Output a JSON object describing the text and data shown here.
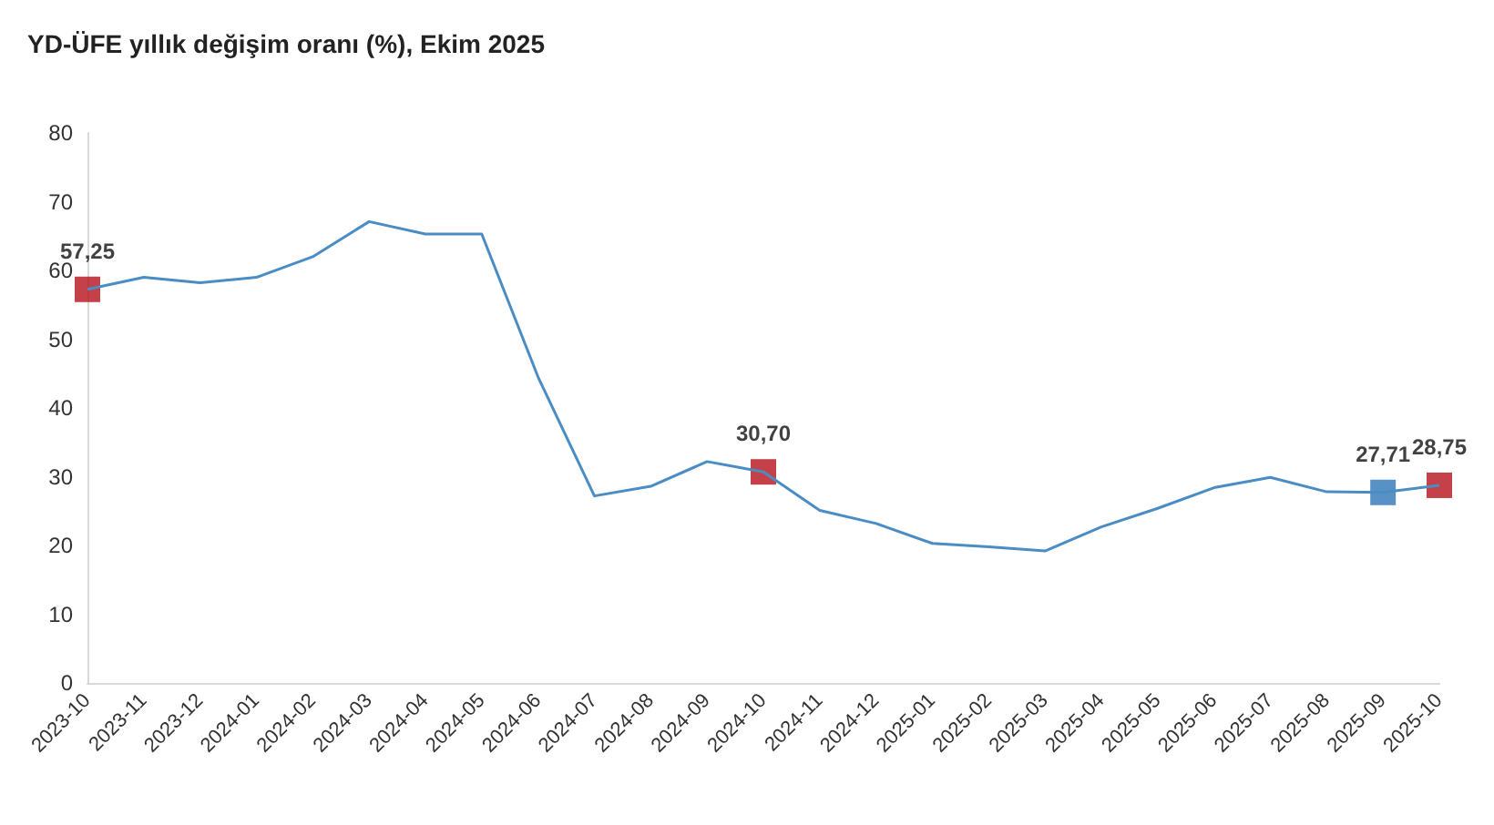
{
  "chart_data": {
    "type": "line",
    "title": "YD-ÜFE yıllık değişim oranı (%), Ekim 2025",
    "categories": [
      "2023-10",
      "2023-11",
      "2023-12",
      "2024-01",
      "2024-02",
      "2024-03",
      "2024-04",
      "2024-05",
      "2024-06",
      "2024-07",
      "2024-08",
      "2024-09",
      "2024-10",
      "2024-11",
      "2024-12",
      "2025-01",
      "2025-02",
      "2025-03",
      "2025-04",
      "2025-05",
      "2025-06",
      "2025-07",
      "2025-08",
      "2025-09",
      "2025-10"
    ],
    "series": [
      {
        "color": "#4a8cc4",
        "marker": "none",
        "values": [
          57.25,
          59.0,
          58.2,
          59.0,
          62.0,
          67.1,
          65.3,
          65.3,
          44.5,
          27.2,
          28.6,
          32.2,
          30.7,
          25.1,
          23.2,
          20.3,
          19.8,
          19.2,
          22.7,
          25.4,
          28.4,
          29.9,
          27.8,
          27.71,
          28.75
        ]
      },
      {
        "type": "scatter",
        "color": "#b5121b",
        "marker": "square",
        "values": [
          57.25,
          null,
          null,
          null,
          null,
          null,
          null,
          null,
          null,
          null,
          null,
          null,
          30.7,
          null,
          null,
          null,
          null,
          null,
          null,
          null,
          null,
          null,
          null,
          null,
          28.75
        ],
        "value_labels": [
          "57,25",
          null,
          null,
          null,
          null,
          null,
          null,
          null,
          null,
          null,
          null,
          null,
          "30,70",
          null,
          null,
          null,
          null,
          null,
          null,
          null,
          null,
          null,
          null,
          null,
          "28,75"
        ]
      },
      {
        "type": "scatter",
        "color": "#2e75b6",
        "marker": "square",
        "values": [
          null,
          null,
          null,
          null,
          null,
          null,
          null,
          null,
          null,
          null,
          null,
          null,
          null,
          null,
          null,
          null,
          null,
          null,
          null,
          null,
          null,
          null,
          null,
          27.71,
          null
        ],
        "value_labels": [
          null,
          null,
          null,
          null,
          null,
          null,
          null,
          null,
          null,
          null,
          null,
          null,
          null,
          null,
          null,
          null,
          null,
          null,
          null,
          null,
          null,
          null,
          null,
          "27,71",
          null
        ]
      }
    ],
    "ylim": [
      0,
      80
    ],
    "yticks": [
      0,
      10,
      20,
      30,
      40,
      50,
      60,
      70,
      80
    ],
    "grid": false
  }
}
